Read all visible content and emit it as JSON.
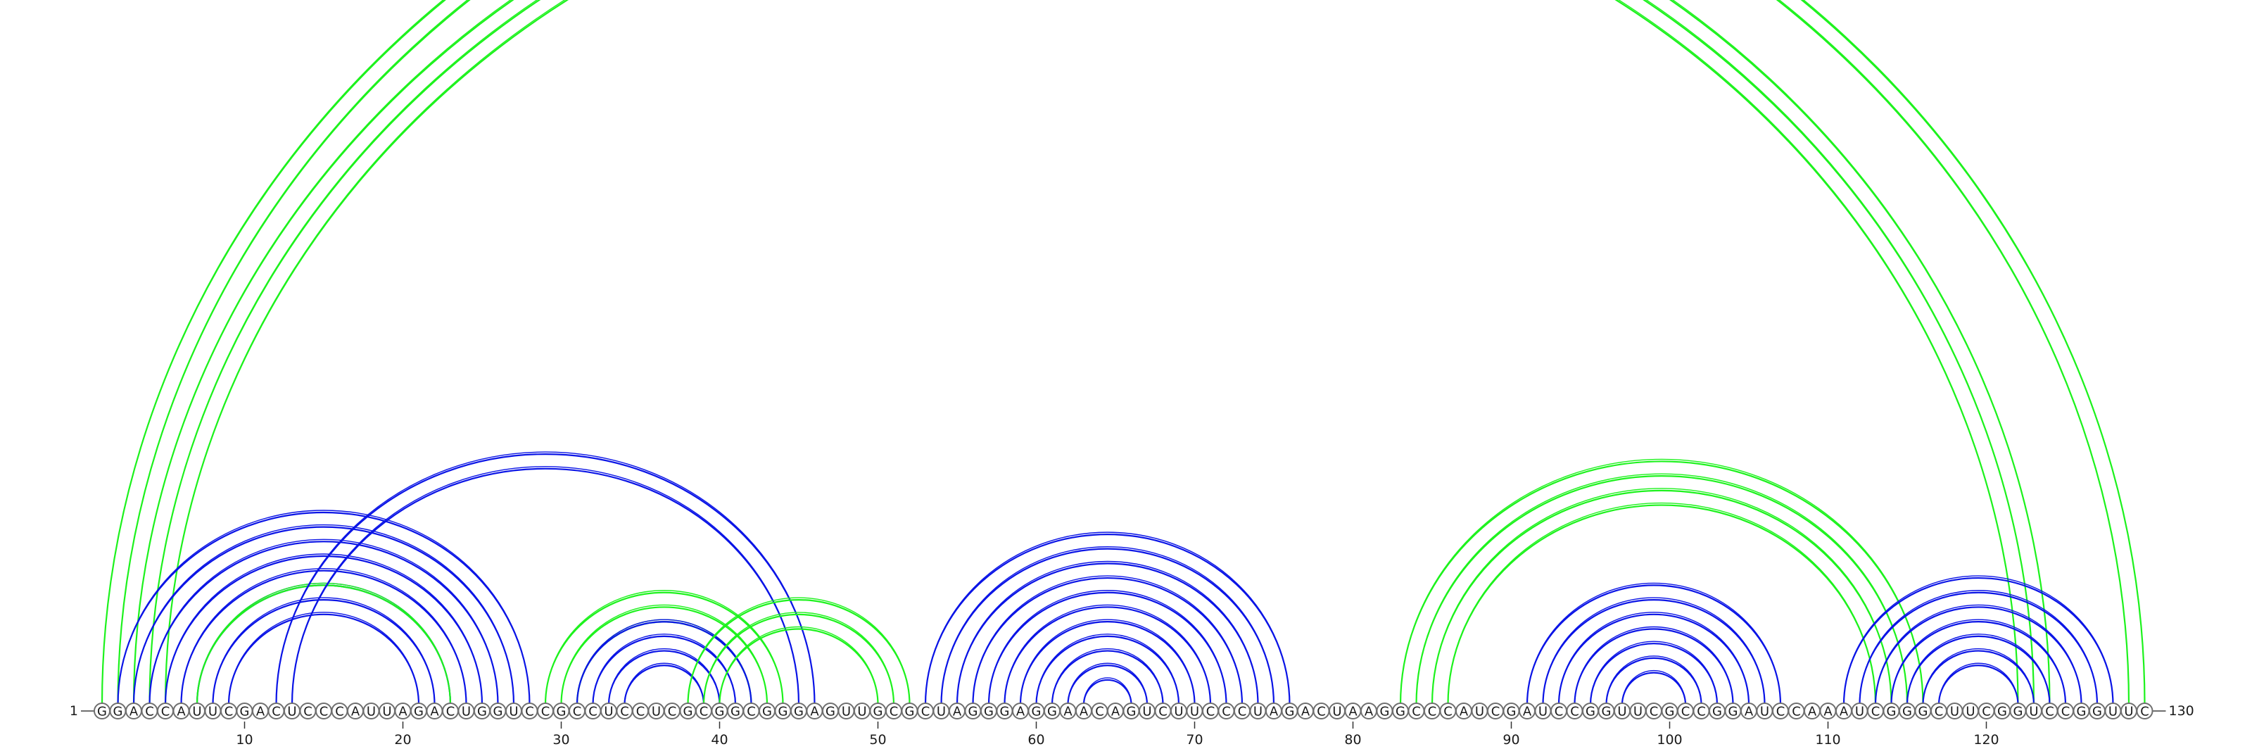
{
  "sequence": "GGACCAUUCGACUCCCAUUAGACUGGUCCGCCUCCUCGCGGCGGGAGUUGCGCUAGGGAGGAACAGUCUUCCCUAGACUAAGGCCCAUCGAUCCGGUUCGCCGGAUCCAAAUCGGGCUUCGGUCCGGUUC",
  "start_label": "1",
  "end_label": "130",
  "ticks": [
    "10",
    "20",
    "30",
    "40",
    "50",
    "60",
    "70",
    "80",
    "90",
    "100",
    "110",
    "120"
  ],
  "colors": {
    "blue": "#0a14e6",
    "green": "#1df21d",
    "backbone": "#6f6f6f"
  },
  "arc_groups": [
    {
      "name": "outer-green-long",
      "color": "green",
      "pairs": [
        [
          1,
          130
        ],
        [
          2,
          129
        ],
        [
          3,
          124
        ],
        [
          4,
          123
        ],
        [
          5,
          122
        ]
      ]
    },
    {
      "name": "left-blue-big",
      "color": "blue",
      "pairs": [
        [
          2,
          28
        ],
        [
          3,
          27
        ],
        [
          4,
          26
        ],
        [
          5,
          25
        ],
        [
          6,
          24
        ],
        [
          7,
          23
        ],
        [
          8,
          22
        ],
        [
          9,
          21
        ]
      ]
    },
    {
      "name": "left-green-inner",
      "color": "green",
      "pairs": [
        [
          7,
          23
        ]
      ]
    },
    {
      "name": "blue-pseudoknot",
      "color": "blue",
      "pairs": [
        [
          12,
          46
        ],
        [
          13,
          45
        ]
      ]
    },
    {
      "name": "green-30-44",
      "color": "green",
      "pairs": [
        [
          29,
          44
        ],
        [
          30,
          43
        ],
        [
          31,
          42
        ]
      ]
    },
    {
      "name": "blue-31-41",
      "color": "blue",
      "pairs": [
        [
          31,
          42
        ],
        [
          32,
          41
        ],
        [
          33,
          40
        ],
        [
          34,
          39
        ]
      ]
    },
    {
      "name": "green-38-52",
      "color": "green",
      "pairs": [
        [
          38,
          52
        ],
        [
          39,
          51
        ],
        [
          40,
          50
        ]
      ]
    },
    {
      "name": "blue-53-76",
      "color": "blue",
      "pairs": [
        [
          53,
          76
        ],
        [
          54,
          75
        ],
        [
          55,
          74
        ],
        [
          56,
          73
        ],
        [
          57,
          72
        ],
        [
          58,
          71
        ],
        [
          59,
          70
        ],
        [
          60,
          69
        ],
        [
          61,
          68
        ],
        [
          62,
          67
        ],
        [
          63,
          66
        ]
      ]
    },
    {
      "name": "green-83-116",
      "color": "green",
      "pairs": [
        [
          83,
          116
        ],
        [
          84,
          115
        ],
        [
          85,
          114
        ],
        [
          86,
          113
        ]
      ]
    },
    {
      "name": "blue-91-107",
      "color": "blue",
      "pairs": [
        [
          91,
          107
        ],
        [
          92,
          106
        ],
        [
          93,
          105
        ],
        [
          94,
          104
        ],
        [
          95,
          103
        ],
        [
          96,
          102
        ],
        [
          97,
          101
        ]
      ]
    },
    {
      "name": "blue-111-128",
      "color": "blue",
      "pairs": [
        [
          111,
          128
        ],
        [
          112,
          127
        ],
        [
          113,
          126
        ],
        [
          114,
          125
        ],
        [
          115,
          124
        ],
        [
          116,
          123
        ],
        [
          117,
          122
        ]
      ]
    }
  ]
}
